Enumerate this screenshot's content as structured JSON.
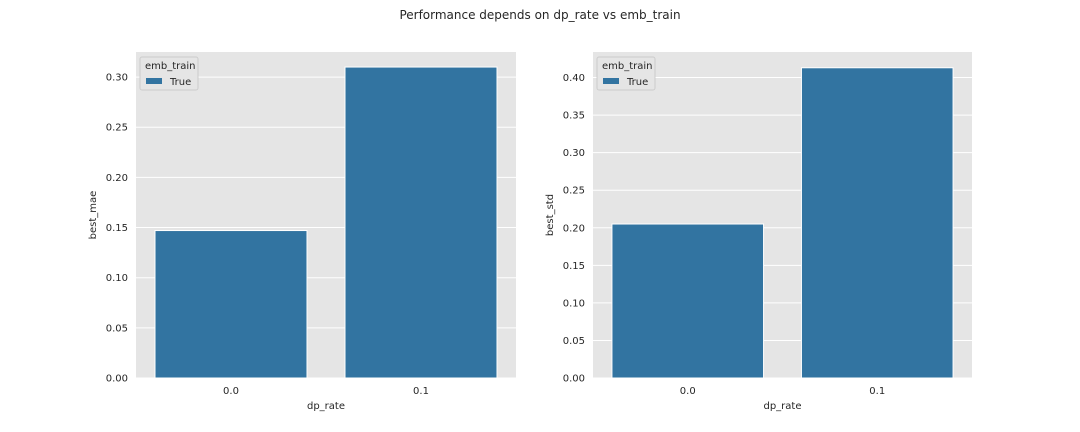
{
  "figure": {
    "suptitle": "Performance depends on dp_rate vs emb_train"
  },
  "colors": {
    "panel_background": "#e5e5e5",
    "grid": "#ffffff",
    "bar": "#3274a1",
    "text": "#262626"
  },
  "chart_data": [
    {
      "type": "bar",
      "categories": [
        "0.0",
        "0.1"
      ],
      "series": [
        {
          "name": "True",
          "values": [
            0.147,
            0.31
          ]
        }
      ],
      "xlabel": "dp_rate",
      "ylabel": "best_mae",
      "ylim": [
        0,
        0.325
      ],
      "yticks": [
        "0.00",
        "0.05",
        "0.10",
        "0.15",
        "0.20",
        "0.25",
        "0.30"
      ],
      "legend": {
        "title": "emb_train",
        "position": "top-left"
      },
      "grid": true
    },
    {
      "type": "bar",
      "categories": [
        "0.0",
        "0.1"
      ],
      "series": [
        {
          "name": "True",
          "values": [
            0.205,
            0.413
          ]
        }
      ],
      "xlabel": "dp_rate",
      "ylabel": "best_std",
      "ylim": [
        0,
        0.434
      ],
      "yticks": [
        "0.00",
        "0.05",
        "0.10",
        "0.15",
        "0.20",
        "0.25",
        "0.30",
        "0.35",
        "0.40"
      ],
      "legend": {
        "title": "emb_train",
        "position": "top-left"
      },
      "grid": true
    }
  ]
}
